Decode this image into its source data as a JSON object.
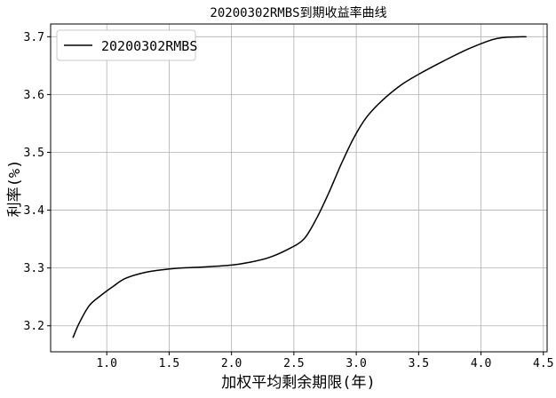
{
  "chart_data": {
    "type": "line",
    "title": "20200302RMBS到期收益率曲线",
    "xlabel": "加权平均剩余期限(年)",
    "ylabel": "利率(%)",
    "xlim": [
      0.55,
      4.53
    ],
    "ylim": [
      3.155,
      3.722
    ],
    "xticks": [
      1.0,
      1.5,
      2.0,
      2.5,
      3.0,
      3.5,
      4.0,
      4.5
    ],
    "xtick_labels": [
      "1.0",
      "1.5",
      "2.0",
      "2.5",
      "3.0",
      "3.5",
      "4.0",
      "4.5"
    ],
    "yticks": [
      3.2,
      3.3,
      3.4,
      3.5,
      3.6,
      3.7
    ],
    "ytick_labels": [
      "3.2",
      "3.3",
      "3.4",
      "3.5",
      "3.6",
      "3.7"
    ],
    "grid": true,
    "legend_position": "top-left",
    "series": [
      {
        "name": "20200302RMBS",
        "color": "#000000",
        "x": [
          0.73,
          0.78,
          0.86,
          0.95,
          1.05,
          1.15,
          1.3,
          1.45,
          1.6,
          1.8,
          2.0,
          2.15,
          2.3,
          2.45,
          2.58,
          2.68,
          2.78,
          2.88,
          2.98,
          3.08,
          3.2,
          3.35,
          3.5,
          3.7,
          3.9,
          4.05,
          4.13,
          4.2,
          4.36
        ],
        "values": [
          3.18,
          3.205,
          3.235,
          3.252,
          3.268,
          3.282,
          3.292,
          3.297,
          3.3,
          3.302,
          3.305,
          3.31,
          3.318,
          3.332,
          3.35,
          3.385,
          3.43,
          3.48,
          3.525,
          3.56,
          3.588,
          3.615,
          3.635,
          3.658,
          3.679,
          3.692,
          3.697,
          3.699,
          3.7
        ]
      }
    ]
  }
}
